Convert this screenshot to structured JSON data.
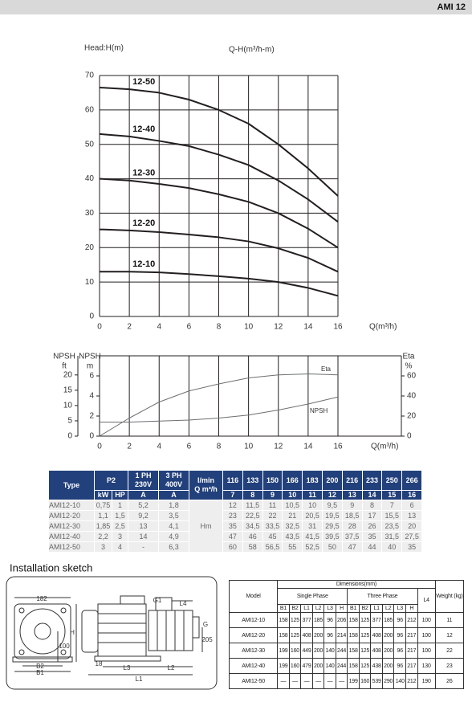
{
  "header": {
    "title": "AMI 12"
  },
  "chart_data": [
    {
      "type": "line",
      "title": "Q-H(m³/h-m)",
      "y_label": "Head:H(m)",
      "x_label": "Q(m³/h)",
      "x": [
        0,
        2,
        4,
        6,
        8,
        10,
        12,
        14,
        16
      ],
      "xlim": [
        0,
        16
      ],
      "xticks": [
        0,
        2,
        4,
        6,
        8,
        10,
        12,
        14,
        16
      ],
      "ylim": [
        0,
        70
      ],
      "yticks": [
        0,
        10,
        20,
        30,
        40,
        50,
        60,
        70
      ],
      "grid": true,
      "series": [
        {
          "name": "12-50",
          "color": "#231f20",
          "values": [
            66.5,
            66,
            65,
            63,
            60,
            56,
            50,
            43,
            35
          ]
        },
        {
          "name": "12-40",
          "color": "#231f20",
          "values": [
            53,
            52.3,
            51,
            49.5,
            47,
            44,
            39.5,
            34,
            27.5
          ]
        },
        {
          "name": "12-30",
          "color": "#231f20",
          "values": [
            40,
            39.5,
            38.5,
            37.3,
            35.5,
            33.3,
            30,
            25.5,
            20
          ]
        },
        {
          "name": "12-20",
          "color": "#231f20",
          "values": [
            25.3,
            25,
            24.5,
            23.8,
            23,
            21.8,
            19.8,
            17,
            13
          ]
        },
        {
          "name": "12-10",
          "color": "#231f20",
          "values": [
            13,
            13,
            12.8,
            12.3,
            11.7,
            11,
            10,
            8.3,
            6
          ]
        }
      ]
    },
    {
      "type": "line",
      "x_label": "Q(m³/h)",
      "x": [
        0,
        2,
        4,
        6,
        8,
        10,
        12,
        14,
        16
      ],
      "xlim": [
        0,
        16
      ],
      "xticks": [
        0,
        2,
        4,
        6,
        8,
        10,
        12,
        14,
        16
      ],
      "ylim": [
        0,
        8
      ],
      "yticks": [
        0,
        2,
        4,
        6
      ],
      "y_label": "NPSH",
      "y_unit": "m",
      "yftlim": [
        0,
        26.25
      ],
      "yftticks": [
        0,
        5,
        10,
        15,
        20
      ],
      "yft_label": "NPSH",
      "yft_unit": "ft",
      "y2lim": [
        0,
        80
      ],
      "y2ticks": [
        0,
        20,
        40,
        60
      ],
      "y2_label": "Eta",
      "y2_unit": "%",
      "series": [
        {
          "name": "Eta",
          "axis": "y2",
          "color": "#6d6e71",
          "values": [
            0,
            18,
            34,
            45,
            52,
            58,
            61,
            62,
            61
          ]
        },
        {
          "name": "NPSH",
          "color": "#6d6e71",
          "values": [
            1.4,
            1.4,
            1.5,
            1.6,
            1.8,
            2.1,
            2.6,
            3.2,
            3.9
          ]
        }
      ]
    }
  ],
  "performance_table": {
    "type_header": "Type",
    "p2_header": "P2",
    "ph1_header": "1 PH 230V",
    "ph3_header": "3 PH 400V",
    "flow_header": "l/min",
    "flow_header2": "Q m³/h",
    "units": [
      "kW",
      "HP",
      "A",
      "A"
    ],
    "flow_lmin": [
      "116",
      "133",
      "150",
      "166",
      "183",
      "200",
      "216",
      "233",
      "250",
      "266"
    ],
    "flow_m3h": [
      "7",
      "8",
      "9",
      "10",
      "11",
      "12",
      "13",
      "14",
      "15",
      "16"
    ],
    "head_unit": "Hm",
    "rows": [
      [
        "AMI12-10",
        "0,75",
        "1",
        "5,2",
        "1,8",
        "12",
        "11,5",
        "11",
        "10,5",
        "10",
        "9,5",
        "9",
        "8",
        "7",
        "6"
      ],
      [
        "AMI12-20",
        "1,1",
        "1,5",
        "9,2",
        "3,5",
        "23",
        "22,5",
        "22",
        "21",
        "20,5",
        "19,5",
        "18,5",
        "17",
        "15,5",
        "13"
      ],
      [
        "AMI12-30",
        "1,85",
        "2,5",
        "13",
        "4,1",
        "35",
        "34,5",
        "33,5",
        "32,5",
        "31",
        "29,5",
        "28",
        "26",
        "23,5",
        "20"
      ],
      [
        "AMI12-40",
        "2,2",
        "3",
        "14",
        "4,9",
        "47",
        "46",
        "45",
        "43,5",
        "41,5",
        "39,5",
        "37,5",
        "35",
        "31,5",
        "27,5"
      ],
      [
        "AMI12-50",
        "3",
        "4",
        "-",
        "6,3",
        "60",
        "58",
        "56,5",
        "55",
        "52,5",
        "50",
        "47",
        "44",
        "40",
        "35"
      ]
    ]
  },
  "sketch": {
    "title": "Installation sketch",
    "labels": [
      "182",
      "B2",
      "B1",
      "100",
      "H",
      "G1",
      "L4",
      "G",
      "205",
      "18",
      "L3",
      "L2",
      "L1"
    ]
  },
  "dimension_table": {
    "model_header": "Model",
    "dims_header": "Dimensions(mm)",
    "single_phase": "Single Phase",
    "three_phase": "Three Phase",
    "l4_header": "L4",
    "weight_header": "Weight (kg)",
    "columns": [
      "B1",
      "B2",
      "L1",
      "L2",
      "L3",
      "H",
      "B1",
      "B2",
      "L1",
      "L2",
      "L3",
      "H"
    ],
    "rows": [
      [
        "AMI12-10",
        "158",
        "125",
        "377",
        "185",
        "96",
        "206",
        "158",
        "125",
        "377",
        "185",
        "96",
        "212",
        "100",
        "11"
      ],
      [
        "AMI12-20",
        "158",
        "125",
        "408",
        "200",
        "96",
        "214",
        "158",
        "125",
        "408",
        "200",
        "96",
        "217",
        "100",
        "12"
      ],
      [
        "AMI12-30",
        "199",
        "160",
        "449",
        "200",
        "140",
        "244",
        "158",
        "125",
        "408",
        "200",
        "96",
        "217",
        "100",
        "22"
      ],
      [
        "AMI12-40",
        "199",
        "160",
        "479",
        "200",
        "140",
        "244",
        "158",
        "125",
        "438",
        "200",
        "96",
        "217",
        "130",
        "23"
      ],
      [
        "AMI12-50",
        "—",
        "—",
        "—",
        "—",
        "—",
        "—",
        "199",
        "160",
        "539",
        "290",
        "140",
        "212",
        "190",
        "26"
      ]
    ]
  }
}
